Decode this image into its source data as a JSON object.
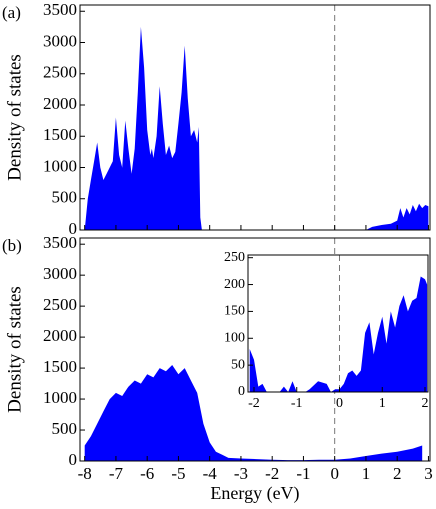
{
  "chart_data": [
    {
      "type": "area",
      "panel_label": "(a)",
      "ylabel": "Density of states",
      "color": "#0000ff",
      "x": [
        -8,
        -7.9,
        -7.8,
        -7.7,
        -7.6,
        -7.5,
        -7.4,
        -7.3,
        -7.1,
        -7.0,
        -6.9,
        -6.8,
        -6.7,
        -6.6,
        -6.5,
        -6.4,
        -6.3,
        -6.2,
        -6.1,
        -6.0,
        -5.9,
        -5.85,
        -5.8,
        -5.7,
        -5.6,
        -5.5,
        -5.4,
        -5.3,
        -5.2,
        -5.1,
        -5.0,
        -4.9,
        -4.8,
        -4.7,
        -4.6,
        -4.5,
        -4.4,
        -4.35,
        -4.3,
        -4.25,
        1.0,
        1.2,
        1.5,
        1.8,
        2.0,
        2.1,
        2.2,
        2.3,
        2.4,
        2.5,
        2.6,
        2.7,
        2.8,
        2.9,
        3.0
      ],
      "values": [
        0,
        500,
        800,
        1100,
        1400,
        1000,
        800,
        900,
        1100,
        1800,
        1200,
        1000,
        1750,
        1300,
        900,
        1300,
        2200,
        3250,
        2600,
        1600,
        1200,
        1300,
        1150,
        1500,
        2300,
        1700,
        1200,
        1350,
        1150,
        1250,
        1700,
        2200,
        2950,
        2100,
        1500,
        1600,
        1400,
        1650,
        200,
        0,
        0,
        50,
        80,
        100,
        150,
        350,
        200,
        350,
        250,
        400,
        300,
        420,
        350,
        400,
        380
      ],
      "xlim": [
        -8.15,
        3.05
      ],
      "ylim": [
        0,
        3600
      ],
      "xticks": [
        -8,
        -7,
        -6,
        -5,
        -4,
        -3,
        -2,
        -1,
        0,
        1,
        2,
        3
      ],
      "show_xtick_labels": false,
      "yticks": [
        0,
        500,
        1000,
        1500,
        2000,
        2500,
        3000,
        3500
      ],
      "vline": 0
    },
    {
      "type": "area",
      "panel_label": "(b)",
      "ylabel": "Density of states",
      "xlabel": "Energy (eV)",
      "color": "#0000ff",
      "x": [
        -8,
        -7.8,
        -7.6,
        -7.4,
        -7.2,
        -7.0,
        -6.8,
        -6.6,
        -6.4,
        -6.2,
        -6.0,
        -5.8,
        -5.6,
        -5.4,
        -5.2,
        -5.0,
        -4.8,
        -4.6,
        -4.4,
        -4.2,
        -4.0,
        -3.8,
        -3.6,
        -3.4,
        -3.0,
        -2.5,
        -2.0,
        -1.5,
        -1.0,
        -0.5,
        0,
        0.5,
        1.0,
        1.5,
        2.0,
        2.5,
        2.8
      ],
      "values": [
        250,
        400,
        600,
        800,
        1000,
        1100,
        1050,
        1200,
        1300,
        1250,
        1400,
        1350,
        1500,
        1450,
        1550,
        1400,
        1500,
        1300,
        1100,
        600,
        300,
        150,
        100,
        50,
        40,
        30,
        20,
        15,
        15,
        20,
        20,
        40,
        80,
        120,
        150,
        200,
        250
      ],
      "xlim": [
        -8.15,
        3.05
      ],
      "ylim": [
        0,
        3600
      ],
      "xticks": [
        -8,
        -7,
        -6,
        -5,
        -4,
        -3,
        -2,
        -1,
        0,
        1,
        2,
        3
      ],
      "show_xtick_labels": true,
      "yticks": [
        0,
        500,
        1000,
        1500,
        2000,
        2500,
        3000,
        3500
      ],
      "vline": 0
    },
    {
      "type": "area",
      "color": "#0000ff",
      "x": [
        -2.1,
        -2.0,
        -1.9,
        -1.8,
        -1.7,
        -1.4,
        -1.3,
        -1.2,
        -1.1,
        -1.0,
        -0.8,
        -0.7,
        -0.5,
        -0.3,
        -0.2,
        -0.1,
        0,
        0.1,
        0.2,
        0.3,
        0.4,
        0.5,
        0.6,
        0.7,
        0.8,
        0.9,
        1.0,
        1.1,
        1.2,
        1.3,
        1.4,
        1.5,
        1.6,
        1.7,
        1.8,
        1.9,
        2.0,
        2.05
      ],
      "values": [
        80,
        60,
        10,
        15,
        0,
        0,
        10,
        0,
        20,
        0,
        0,
        5,
        20,
        15,
        0,
        5,
        5,
        15,
        35,
        40,
        30,
        40,
        110,
        130,
        70,
        110,
        140,
        90,
        150,
        120,
        160,
        180,
        150,
        170,
        175,
        215,
        210,
        200
      ],
      "xlim": [
        -2.14,
        2.07
      ],
      "ylim": [
        0,
        255
      ],
      "xticks": [
        -2,
        -1,
        0,
        1,
        2
      ],
      "show_xtick_labels": true,
      "yticks": [
        0,
        50,
        100,
        150,
        200,
        250
      ],
      "vline": 0
    }
  ]
}
